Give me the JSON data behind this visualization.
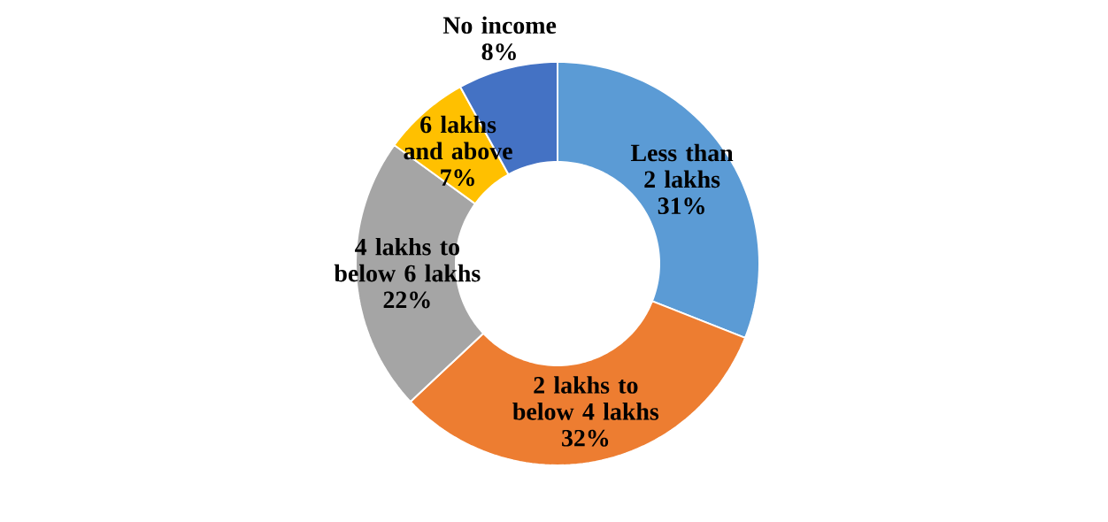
{
  "chart_data": {
    "type": "donut",
    "categories": [
      "Less than 2 lakhs",
      "2 lakhs to below 4 lakhs",
      "4 lakhs to below 6 lakhs",
      "6 lakhs and above",
      "No income"
    ],
    "values": [
      31,
      32,
      22,
      7,
      8
    ],
    "colors": [
      "#5b9bd5",
      "#ed7d31",
      "#a5a5a5",
      "#ffc000",
      "#4472c4"
    ],
    "value_labels": [
      "31%",
      "32%",
      "22%",
      "7%",
      "8%"
    ]
  }
}
